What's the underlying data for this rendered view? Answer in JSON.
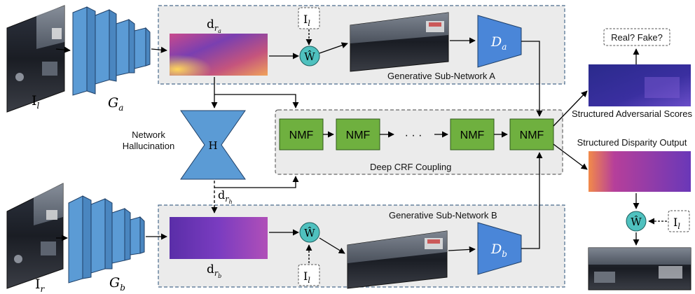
{
  "panels": {
    "gen_a": "Generative Sub-Network A",
    "gen_b": "Generative Sub-Network B",
    "crf": "Deep CRF Coupling"
  },
  "nmf_label": "NMF",
  "nmf_count_shown": 4,
  "ellipsis": "· · ·",
  "hallucination": {
    "title_line1": "Network",
    "title_line2": "Hallucination",
    "symbol": "H"
  },
  "inputs": {
    "left_base": "I",
    "left_sub": "l",
    "right_base": "I",
    "right_sub": "r"
  },
  "generators": {
    "a_base": "G",
    "a_sub": "a",
    "b_base": "G",
    "b_sub": "b"
  },
  "disparities": {
    "dra_base": "d",
    "dra_sub": "r",
    "dra_subsub": "a",
    "drb_base": "d",
    "drb_sub": "r",
    "drb_subsub": "b",
    "drh_base": "d",
    "drh_sub": "r",
    "drh_subsub": "h"
  },
  "warp_symbol": "Ŵ",
  "warp_input": {
    "base": "I",
    "sub": "l"
  },
  "discriminators": {
    "a_base": "D",
    "a_sub": "a",
    "b_base": "D",
    "b_sub": "b"
  },
  "outputs": {
    "real_fake": "Real? Fake?",
    "adv_scores": "Structured Adversarial Scores",
    "disp_output": "Structured Disparity Output"
  },
  "colors": {
    "panel_fill": "#ebebeb",
    "panel_border": "#4a6b8c",
    "network_blue": "#5b9bd5",
    "nmf_green": "#6fb03f",
    "warp_teal": "#4fc1bf"
  }
}
